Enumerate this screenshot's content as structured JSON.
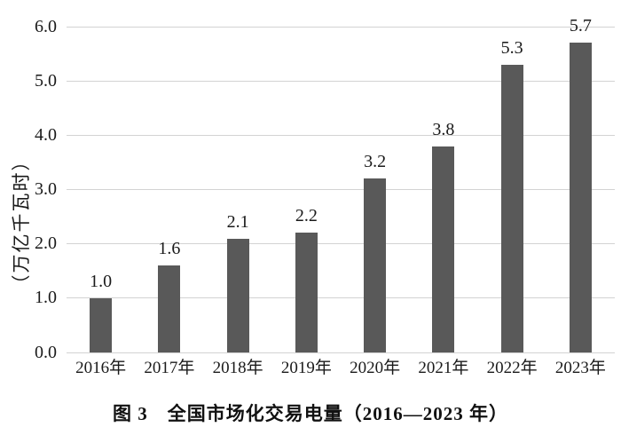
{
  "figure": {
    "caption": "图 3　全国市场化交易电量（2016—2023 年）"
  },
  "chart_data": {
    "type": "bar",
    "categories": [
      "2016年",
      "2017年",
      "2018年",
      "2019年",
      "2020年",
      "2021年",
      "2022年",
      "2023年"
    ],
    "values": [
      1.0,
      1.6,
      2.1,
      2.2,
      3.2,
      3.8,
      5.3,
      5.7
    ],
    "value_labels": [
      "1.0",
      "1.6",
      "2.1",
      "2.2",
      "3.2",
      "3.8",
      "5.3",
      "5.7"
    ],
    "title": "图 3　全国市场化交易电量（2016—2023 年）",
    "xlabel": "",
    "ylabel": "（万亿千瓦时）",
    "ylim": [
      0,
      6
    ],
    "yticks": [
      "0.0",
      "1.0",
      "2.0",
      "3.0",
      "4.0",
      "5.0",
      "6.0"
    ],
    "grid": true,
    "legend": "none",
    "bar_color": "#595959",
    "gridline_color": "#d3d3d3",
    "text_color": "#1a1a1a"
  }
}
